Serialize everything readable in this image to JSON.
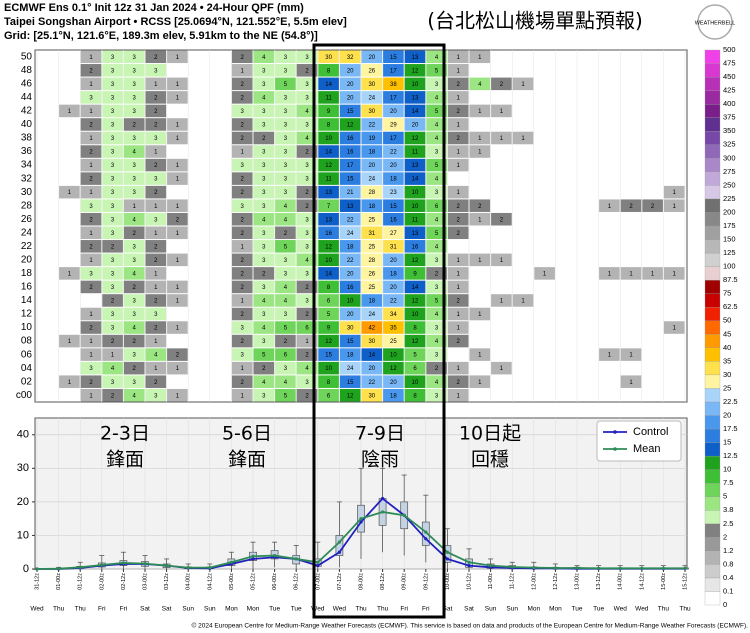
{
  "header": {
    "title": "ECMWF Ens 0.1° Init 12z 31 Jan 2024 • 24-Hour QPF (mm)",
    "subtitle": [
      "Taipei Songshan Airport • RCSS [25.0694°N, 121.552°E, 5.5m elev]",
      "Grid: [25.1°N, 121.6°E, 189.3m elev, 5.91km to the NE (54.8°)]"
    ],
    "annotation": "(台北松山機場單點預報)",
    "logo": "WEATHERBELL"
  },
  "chart_data": [
    {
      "type": "heatmap",
      "rows": [
        "c00",
        "02",
        "04",
        "06",
        "08",
        "10",
        "12",
        "14",
        "16",
        "18",
        "20",
        "22",
        "24",
        "26",
        "28",
        "30",
        "32",
        "34",
        "36",
        "38",
        "40",
        "42",
        "44",
        "46",
        "48",
        "50"
      ],
      "values": [
        [
          null,
          null,
          1,
          2,
          4,
          3,
          1,
          null,
          null,
          1,
          3,
          5,
          2,
          6,
          12,
          30,
          18,
          8,
          3,
          1,
          null,
          null,
          null,
          null,
          null,
          null,
          null,
          null,
          null,
          null
        ],
        [
          null,
          1,
          2,
          3,
          3,
          2,
          null,
          null,
          null,
          2,
          4,
          4,
          3,
          8,
          15,
          22,
          20,
          10,
          4,
          2,
          1,
          null,
          null,
          null,
          null,
          null,
          null,
          1,
          null,
          null
        ],
        [
          null,
          null,
          3,
          4,
          2,
          1,
          1,
          null,
          null,
          1,
          2,
          3,
          4,
          10,
          24,
          20,
          12,
          6,
          2,
          1,
          null,
          1,
          null,
          null,
          null,
          null,
          null,
          null,
          null,
          null
        ],
        [
          null,
          null,
          1,
          1,
          3,
          4,
          2,
          null,
          null,
          3,
          5,
          6,
          2,
          15,
          18,
          14,
          10,
          5,
          3,
          null,
          1,
          null,
          null,
          null,
          null,
          null,
          1,
          1,
          null,
          null
        ],
        [
          null,
          1,
          1,
          2,
          2,
          1,
          null,
          null,
          null,
          2,
          3,
          2,
          1,
          12,
          15,
          30,
          25,
          12,
          4,
          2,
          null,
          null,
          null,
          null,
          null,
          null,
          null,
          null,
          null,
          null
        ],
        [
          null,
          null,
          2,
          3,
          4,
          2,
          1,
          null,
          null,
          3,
          4,
          5,
          6,
          9,
          30,
          42,
          35,
          8,
          3,
          1,
          null,
          null,
          null,
          null,
          null,
          null,
          null,
          null,
          null,
          1
        ],
        [
          null,
          null,
          1,
          3,
          3,
          3,
          null,
          null,
          null,
          2,
          3,
          3,
          2,
          5,
          20,
          24,
          34,
          10,
          4,
          1,
          1,
          null,
          null,
          null,
          null,
          null,
          null,
          null,
          null,
          null
        ],
        [
          null,
          null,
          null,
          2,
          3,
          2,
          1,
          null,
          null,
          1,
          4,
          4,
          3,
          6,
          10,
          18,
          22,
          12,
          5,
          2,
          null,
          1,
          1,
          null,
          null,
          null,
          null,
          null,
          null,
          null
        ],
        [
          null,
          null,
          2,
          3,
          2,
          1,
          1,
          null,
          null,
          2,
          3,
          4,
          2,
          8,
          16,
          25,
          20,
          14,
          3,
          1,
          null,
          null,
          null,
          null,
          null,
          null,
          null,
          null,
          null,
          null
        ],
        [
          null,
          1,
          3,
          3,
          4,
          1,
          null,
          null,
          null,
          2,
          2,
          3,
          3,
          14,
          20,
          26,
          18,
          9,
          2,
          1,
          null,
          null,
          null,
          1,
          null,
          null,
          1,
          1,
          1,
          1
        ],
        [
          null,
          null,
          1,
          3,
          3,
          2,
          1,
          null,
          null,
          2,
          3,
          3,
          4,
          10,
          22,
          28,
          20,
          12,
          3,
          1,
          1,
          1,
          null,
          null,
          null,
          null,
          null,
          null,
          null,
          null
        ],
        [
          null,
          null,
          2,
          2,
          3,
          2,
          null,
          null,
          null,
          1,
          3,
          5,
          3,
          12,
          18,
          25,
          31,
          16,
          4,
          null,
          null,
          null,
          null,
          null,
          null,
          null,
          null,
          null,
          null,
          null
        ],
        [
          null,
          null,
          1,
          3,
          2,
          1,
          1,
          null,
          null,
          2,
          3,
          2,
          3,
          16,
          24,
          31,
          27,
          13,
          5,
          2,
          null,
          null,
          null,
          null,
          null,
          null,
          null,
          null,
          null,
          null
        ],
        [
          null,
          null,
          2,
          3,
          4,
          3,
          2,
          null,
          null,
          2,
          4,
          4,
          3,
          13,
          22,
          25,
          16,
          11,
          4,
          2,
          1,
          2,
          null,
          null,
          null,
          null,
          null,
          null,
          null,
          null
        ],
        [
          null,
          null,
          3,
          3,
          1,
          1,
          1,
          null,
          null,
          3,
          3,
          4,
          2,
          7,
          13,
          18,
          15,
          10,
          6,
          2,
          2,
          null,
          null,
          null,
          null,
          null,
          1,
          2,
          2,
          1
        ],
        [
          null,
          1,
          1,
          3,
          3,
          2,
          null,
          null,
          null,
          2,
          3,
          3,
          2,
          13,
          21,
          28,
          23,
          10,
          3,
          1,
          null,
          null,
          null,
          null,
          null,
          null,
          null,
          null,
          null,
          1
        ],
        [
          null,
          null,
          2,
          3,
          3,
          3,
          1,
          null,
          null,
          2,
          3,
          3,
          3,
          11,
          15,
          24,
          18,
          14,
          4,
          null,
          null,
          null,
          null,
          null,
          null,
          null,
          null,
          null,
          null,
          null
        ],
        [
          null,
          null,
          1,
          3,
          3,
          2,
          1,
          null,
          null,
          3,
          3,
          3,
          3,
          12,
          17,
          20,
          20,
          13,
          5,
          1,
          null,
          null,
          null,
          null,
          null,
          null,
          null,
          null,
          null,
          null
        ],
        [
          null,
          null,
          2,
          3,
          4,
          1,
          null,
          null,
          null,
          1,
          3,
          3,
          2,
          14,
          16,
          18,
          22,
          11,
          3,
          1,
          1,
          null,
          null,
          null,
          null,
          null,
          null,
          null,
          null,
          null
        ],
        [
          null,
          null,
          1,
          3,
          3,
          3,
          1,
          null,
          null,
          2,
          2,
          3,
          4,
          10,
          16,
          19,
          17,
          12,
          4,
          2,
          1,
          1,
          1,
          null,
          null,
          null,
          null,
          null,
          null,
          null
        ],
        [
          null,
          null,
          2,
          3,
          2,
          2,
          1,
          null,
          null,
          2,
          3,
          3,
          3,
          8,
          12,
          22,
          29,
          20,
          4,
          1,
          null,
          null,
          null,
          null,
          null,
          null,
          null,
          null,
          null,
          null
        ],
        [
          null,
          1,
          1,
          3,
          3,
          2,
          null,
          null,
          null,
          3,
          3,
          3,
          4,
          9,
          15,
          30,
          20,
          14,
          5,
          2,
          1,
          1,
          null,
          null,
          null,
          null,
          null,
          null,
          null,
          null
        ],
        [
          null,
          null,
          3,
          3,
          3,
          2,
          1,
          null,
          null,
          2,
          4,
          3,
          3,
          11,
          20,
          24,
          17,
          13,
          4,
          1,
          null,
          null,
          null,
          null,
          null,
          null,
          null,
          null,
          null,
          null
        ],
        [
          null,
          null,
          1,
          3,
          3,
          1,
          1,
          null,
          null,
          2,
          3,
          5,
          3,
          14,
          20,
          30,
          38,
          10,
          3,
          2,
          4,
          2,
          1,
          null,
          null,
          null,
          null,
          null,
          null,
          null
        ],
        [
          null,
          null,
          2,
          3,
          3,
          3,
          null,
          null,
          null,
          1,
          3,
          3,
          2,
          8,
          20,
          26,
          17,
          12,
          5,
          1,
          null,
          null,
          null,
          null,
          null,
          null,
          null,
          null,
          null,
          null
        ],
        [
          null,
          null,
          1,
          3,
          3,
          2,
          1,
          null,
          null,
          2,
          4,
          3,
          3,
          30,
          32,
          20,
          15,
          13,
          4,
          1,
          1,
          null,
          null,
          null,
          null,
          null,
          null,
          null,
          null,
          null
        ]
      ],
      "colorbar": {
        "levels": [
          0,
          0.1,
          0.4,
          0.8,
          1.2,
          2,
          2.5,
          3.8,
          5,
          7.5,
          10,
          12.5,
          15,
          17.5,
          20,
          22.5,
          25,
          30,
          35,
          40,
          45,
          50,
          62.5,
          75,
          87.5,
          100,
          125,
          150,
          175,
          200,
          225,
          250,
          275,
          300,
          325,
          350,
          375,
          400,
          425,
          450,
          475,
          500
        ],
        "colors": [
          "#ffffff",
          "#e6e6e6",
          "#cccccc",
          "#b3b3b3",
          "#999999",
          "#808080",
          "#c9f5b4",
          "#9be683",
          "#6fd45a",
          "#3fbf36",
          "#1fa31f",
          "#0f5fc8",
          "#2c7de0",
          "#4a98ee",
          "#79b7f5",
          "#a9d4fa",
          "#fff5a0",
          "#ffe14d",
          "#ffc000",
          "#ff9a00",
          "#ff6a00",
          "#f02000",
          "#c80000",
          "#a00000",
          "#e8d0d0",
          "#d0d0d0",
          "#b8b8b8",
          "#a0a0a0",
          "#888888",
          "#707070",
          "#d8c8e8",
          "#c0a8d8",
          "#a888c8",
          "#9068b8",
          "#7848a8",
          "#603090",
          "#7a1f8a",
          "#9a2aa0",
          "#b830b8",
          "#d838d0",
          "#f040e8"
        ]
      }
    },
    {
      "type": "line",
      "categories": [
        "31-12z",
        "01-00z",
        "01-12z",
        "02-00z",
        "02-12z",
        "03-00z",
        "03-12z",
        "04-00z",
        "04-12z",
        "05-00z",
        "05-12z",
        "06-00z",
        "06-12z",
        "07-00z",
        "07-12z",
        "08-00z",
        "08-12z",
        "09-00z",
        "09-12z",
        "10-00z",
        "10-12z",
        "11-00z",
        "11-12z",
        "12-00z",
        "12-12z",
        "13-00z",
        "13-12z",
        "14-00z",
        "14-12z",
        "15-00z",
        "15-12z"
      ],
      "day_labels": [
        "Wed",
        "Thu",
        "Thu",
        "Fri",
        "Fri",
        "Sat",
        "Sat",
        "Sun",
        "Sun",
        "Mon",
        "Mon",
        "Tue",
        "Tue",
        "Wed",
        "Wed",
        "Thu",
        "Thu",
        "Fri",
        "Fri",
        "Sat",
        "Sat",
        "Sun",
        "Sun",
        "Mon",
        "Mon",
        "Tue",
        "Tue",
        "Wed",
        "Wed",
        "Thu",
        "Thu"
      ],
      "ylim": [
        0,
        45
      ],
      "yticks": [
        0,
        10,
        20,
        30,
        40
      ],
      "grid": true,
      "series": [
        {
          "name": "Control",
          "color": "#2020c0",
          "values": [
            0,
            0,
            0.3,
            1,
            1.5,
            1.5,
            1,
            0.3,
            0.2,
            1.5,
            3,
            3.5,
            3,
            1,
            5,
            14,
            21,
            16,
            9,
            3,
            1,
            0.5,
            0.3,
            0.2,
            0.2,
            0.1,
            0.1,
            0.1,
            0.1,
            0.1,
            0.1
          ]
        },
        {
          "name": "Mean",
          "color": "#2e8b57",
          "values": [
            0,
            0.1,
            0.5,
            1.2,
            1.8,
            1.6,
            1,
            0.4,
            0.4,
            2,
            3.8,
            4,
            3,
            2,
            8,
            15,
            17,
            16,
            11,
            5,
            2,
            1,
            0.6,
            0.4,
            0.3,
            0.3,
            0.2,
            0.2,
            0.2,
            0.2,
            0.2
          ]
        }
      ],
      "boxes": {
        "q1": [
          0,
          0,
          0.2,
          0.6,
          1,
          0.8,
          0.4,
          0.1,
          0.1,
          1,
          2.5,
          3,
          1.5,
          0.8,
          4,
          11,
          13,
          12,
          7,
          2,
          0.5,
          0.2,
          0.1,
          0.1,
          0,
          0,
          0,
          0,
          0,
          0,
          0
        ],
        "q3": [
          0,
          0.2,
          0.8,
          1.8,
          2.5,
          2.2,
          1.5,
          0.6,
          0.6,
          3,
          5,
          5.5,
          4,
          3,
          10,
          19,
          21,
          20,
          14,
          7,
          3,
          1.5,
          1,
          0.6,
          0.5,
          0.5,
          0.3,
          0.3,
          0.3,
          0.3,
          0.3
        ],
        "min": [
          0,
          0,
          0,
          0,
          0,
          0,
          0,
          0,
          0,
          0,
          0,
          0.5,
          0,
          0,
          0.5,
          3,
          5,
          4,
          2,
          0,
          0,
          0,
          0,
          0,
          0,
          0,
          0,
          0,
          0,
          0,
          0
        ],
        "max": [
          0,
          0.5,
          2,
          4,
          5,
          4,
          3,
          1.5,
          1.5,
          5,
          8,
          8,
          7,
          8,
          20,
          30,
          30,
          28,
          22,
          12,
          6,
          3,
          2,
          2,
          1.5,
          1,
          1,
          1,
          1,
          1,
          1
        ]
      },
      "annotations": [
        [
          "2-3日",
          "鋒面"
        ],
        [
          "5-6日",
          "鋒面"
        ],
        [
          "7-9日",
          "陰雨"
        ],
        [
          "10日起",
          "回穩"
        ]
      ],
      "legend": "upper right"
    }
  ],
  "footer": "© 2024 European Centre for Medium-Range Weather Forecasts (ECMWF). This service is based on data and products of the European Centre for Medium-Range Weather Forecasts (ECMWF)."
}
